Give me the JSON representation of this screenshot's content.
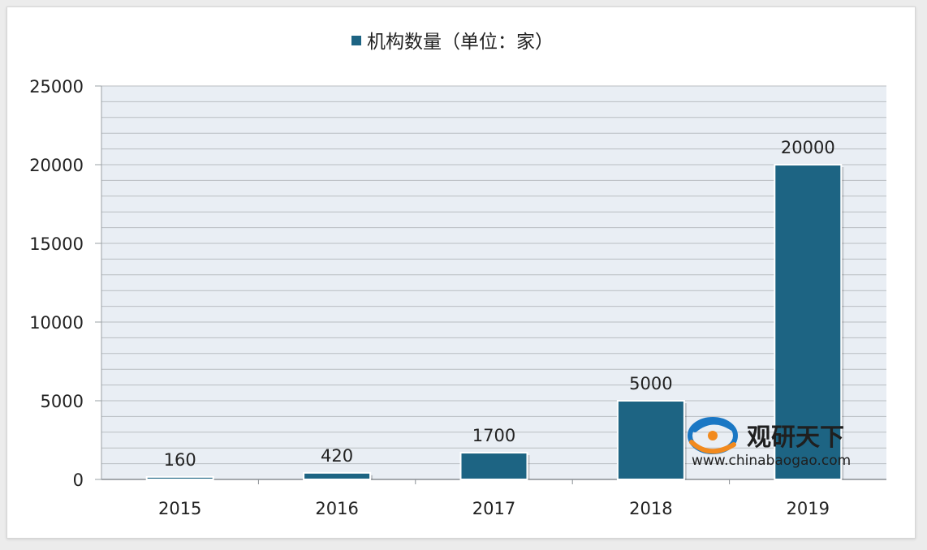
{
  "chart_data": {
    "type": "bar",
    "categories": [
      "2015",
      "2016",
      "2017",
      "2018",
      "2019"
    ],
    "series": [
      {
        "name": "机构数量（单位：家）",
        "values": [
          160,
          420,
          1700,
          5000,
          20000
        ],
        "color": "#1d6483"
      }
    ],
    "data_labels": [
      "160",
      "420",
      "1700",
      "5000",
      "20000"
    ],
    "ylim": [
      0,
      25000
    ],
    "yticks": [
      0,
      5000,
      10000,
      15000,
      20000,
      25000
    ],
    "ytick_labels": [
      "0",
      "5000",
      "10000",
      "15000",
      "20000",
      "25000"
    ],
    "minor_grid_step": 1000,
    "grid": true,
    "legend": "top-center",
    "plot_background": "#e9eef4",
    "grid_color": "#b9bdc2"
  },
  "watermark": {
    "cn_text": "观研天下",
    "url_text": "www.chinabaogao.com",
    "logo_icon": "chinabaogao-logo-icon",
    "logo_colors": [
      "#1a77c4",
      "#f28a1e"
    ]
  }
}
